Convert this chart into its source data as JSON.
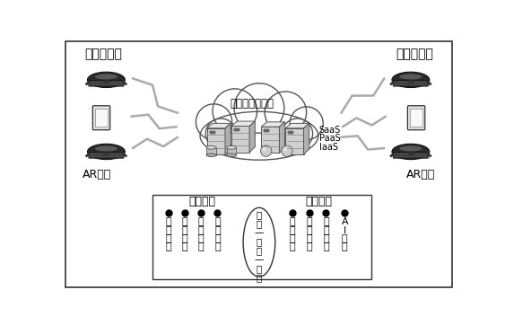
{
  "bg_color": "#ffffff",
  "title_left": "专家诊断侧",
  "title_right": "现场运维侧",
  "cloud_label": "诊断云服务中心",
  "saas_labels": [
    "SaaS",
    "PaaS",
    "IaaS"
  ],
  "ar_label_left": "AR终端",
  "ar_label_right": "AR终端",
  "physical_space_label": "物理空间",
  "virtual_space_label": "虚拟空间",
  "middle_chars": [
    "校",
    "准",
    "—",
    "融",
    "合",
    "—",
    "控",
    "制"
  ],
  "physical_items": [
    [
      "物",
      "理",
      "实",
      "体"
    ],
    [
      "诊",
      "断",
      "团",
      "队"
    ],
    [
      "物",
      "联",
      "感",
      "知"
    ],
    [
      "投",
      "影",
      "显",
      "示"
    ]
  ],
  "virtual_items": [
    [
      "虚",
      "拟",
      "实",
      "体"
    ],
    [
      "实",
      "时",
      "数",
      "据"
    ],
    [
      "历",
      "史",
      "数",
      "据"
    ],
    [
      "A",
      "I",
      "模",
      "型"
    ]
  ]
}
